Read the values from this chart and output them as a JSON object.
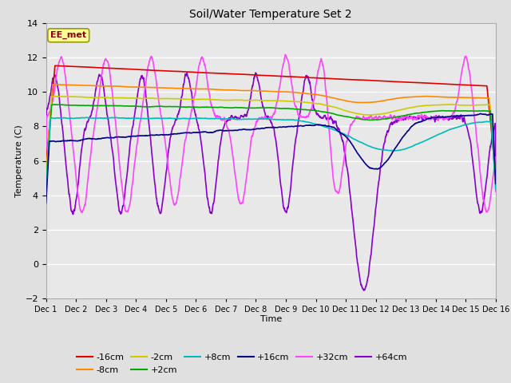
{
  "title": "Soil/Water Temperature Set 2",
  "xlabel": "Time",
  "ylabel": "Temperature (C)",
  "ylim": [
    -2,
    14
  ],
  "yticks": [
    -2,
    0,
    2,
    4,
    6,
    8,
    10,
    12,
    14
  ],
  "xlim": [
    0,
    15
  ],
  "xtick_labels": [
    "Dec 1",
    "Dec 2",
    "Dec 3",
    "Dec 4",
    "Dec 5",
    "Dec 6",
    "Dec 7",
    "Dec 8",
    "Dec 9",
    "Dec 10",
    "Dec 11",
    "Dec 12",
    "Dec 13",
    "Dec 14",
    "Dec 15",
    "Dec 16"
  ],
  "bg_color": "#e0e0e0",
  "plot_bg_color": "#e8e8e8",
  "annotation_text": "EE_met",
  "annotation_color": "#8b0000",
  "annotation_bg": "#ffff99",
  "series": {
    "-16cm": {
      "color": "#dd0000",
      "linewidth": 1.2
    },
    "-8cm": {
      "color": "#ff8800",
      "linewidth": 1.2
    },
    "-2cm": {
      "color": "#cccc00",
      "linewidth": 1.2
    },
    "+2cm": {
      "color": "#00aa00",
      "linewidth": 1.2
    },
    "+8cm": {
      "color": "#00bbbb",
      "linewidth": 1.2
    },
    "+16cm": {
      "color": "#000088",
      "linewidth": 1.2
    },
    "+32cm": {
      "color": "#ff44ff",
      "linewidth": 1.2
    },
    "+64cm": {
      "color": "#8800cc",
      "linewidth": 1.2
    }
  }
}
